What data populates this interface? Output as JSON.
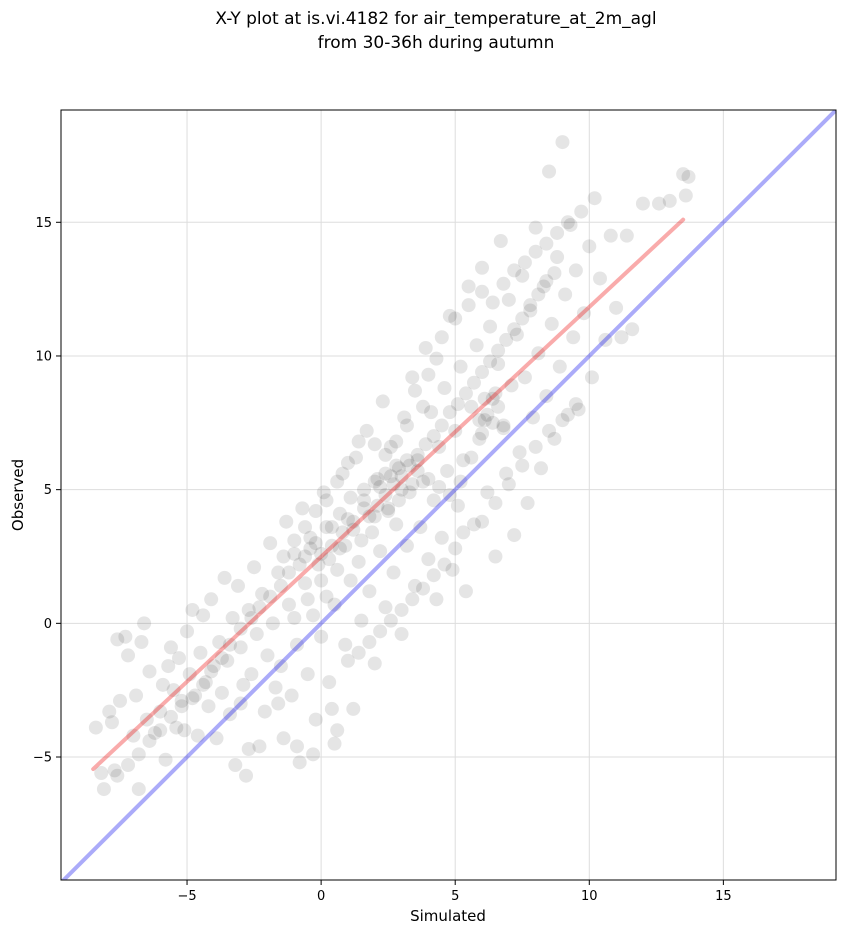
{
  "chart_data": {
    "type": "scatter",
    "title_lines": [
      "X-Y plot at is.vi.4182 for air_temperature_at_2m_agl",
      "from 30-36h during autumn"
    ],
    "xlabel": "Simulated",
    "ylabel": "Observed",
    "xlim": [
      -9.7,
      19.2
    ],
    "ylim": [
      -9.6,
      19.2
    ],
    "xticks": [
      -5,
      0,
      5,
      10,
      15
    ],
    "yticks": [
      -5,
      0,
      5,
      10,
      15
    ],
    "grid": true,
    "point_color": "#000000",
    "reference_line": {
      "color": "#0000ee",
      "x": [
        -9.7,
        19.2
      ],
      "y": [
        -9.7,
        19.2
      ]
    },
    "fit_line": {
      "color": "#ee0000",
      "x": [
        -8.5,
        13.5
      ],
      "y": [
        -5.45,
        15.1
      ]
    },
    "points": [
      [
        -8.4,
        -3.9
      ],
      [
        -8.2,
        -5.6
      ],
      [
        -8.1,
        -6.2
      ],
      [
        -7.9,
        -3.3
      ],
      [
        -7.8,
        -3.7
      ],
      [
        -7.7,
        -5.5
      ],
      [
        -7.6,
        -0.6
      ],
      [
        -7.5,
        -2.9
      ],
      [
        -7.3,
        -0.5
      ],
      [
        -7.2,
        -1.2
      ],
      [
        -7.0,
        -4.2
      ],
      [
        -6.9,
        -2.7
      ],
      [
        -6.8,
        -6.2
      ],
      [
        -6.7,
        -0.7
      ],
      [
        -6.6,
        0.0
      ],
      [
        -6.5,
        -3.6
      ],
      [
        -6.4,
        -1.8
      ],
      [
        -6.2,
        -4.1
      ],
      [
        -6.0,
        -3.3
      ],
      [
        -5.9,
        -2.3
      ],
      [
        -5.8,
        -5.1
      ],
      [
        -5.7,
        -1.6
      ],
      [
        -5.6,
        -0.9
      ],
      [
        -5.5,
        -2.5
      ],
      [
        -5.4,
        -3.9
      ],
      [
        -5.3,
        -1.3
      ],
      [
        -5.2,
        -2.9
      ],
      [
        -5.1,
        -4.0
      ],
      [
        -5.0,
        -0.3
      ],
      [
        -4.9,
        -1.9
      ],
      [
        -4.8,
        0.5
      ],
      [
        -4.7,
        -2.7
      ],
      [
        -4.6,
        -4.2
      ],
      [
        -4.5,
        -1.1
      ],
      [
        -4.4,
        0.3
      ],
      [
        -4.3,
        -2.2
      ],
      [
        -4.2,
        -3.1
      ],
      [
        -4.1,
        0.9
      ],
      [
        -4.0,
        -1.6
      ],
      [
        -3.9,
        -4.3
      ],
      [
        -3.8,
        -0.7
      ],
      [
        -3.7,
        -2.6
      ],
      [
        -3.6,
        1.7
      ],
      [
        -3.5,
        -1.4
      ],
      [
        -3.4,
        -3.4
      ],
      [
        -3.3,
        0.2
      ],
      [
        -3.2,
        -5.3
      ],
      [
        -3.1,
        1.4
      ],
      [
        -3.0,
        -0.9
      ],
      [
        -2.9,
        -2.3
      ],
      [
        -2.8,
        -5.7
      ],
      [
        -2.7,
        0.5
      ],
      [
        -2.6,
        -1.9
      ],
      [
        -2.5,
        2.1
      ],
      [
        -2.4,
        -0.4
      ],
      [
        -2.3,
        -4.6
      ],
      [
        -2.2,
        1.1
      ],
      [
        -2.1,
        -3.3
      ],
      [
        -2.0,
        -1.2
      ],
      [
        -1.9,
        3.0
      ],
      [
        -1.8,
        0.0
      ],
      [
        -1.7,
        -2.4
      ],
      [
        -1.6,
        1.9
      ],
      [
        -1.5,
        -1.6
      ],
      [
        -1.4,
        -4.3
      ],
      [
        -1.3,
        3.8
      ],
      [
        -1.2,
        0.7
      ],
      [
        -1.1,
        -2.7
      ],
      [
        -1.0,
        2.6
      ],
      [
        -0.9,
        -0.8
      ],
      [
        -0.8,
        -5.2
      ],
      [
        -0.7,
        4.3
      ],
      [
        -0.6,
        1.5
      ],
      [
        -0.5,
        -1.9
      ],
      [
        -0.4,
        3.2
      ],
      [
        -0.3,
        0.3
      ],
      [
        -0.2,
        -3.6
      ],
      [
        -0.1,
        2.2
      ],
      [
        0.0,
        -0.5
      ],
      [
        0.1,
        4.9
      ],
      [
        0.2,
        1.0
      ],
      [
        0.3,
        -2.2
      ],
      [
        0.4,
        3.6
      ],
      [
        0.5,
        0.7
      ],
      [
        0.6,
        -4.0
      ],
      [
        0.7,
        2.8
      ],
      [
        0.8,
        5.6
      ],
      [
        0.9,
        -0.8
      ],
      [
        1.0,
        3.9
      ],
      [
        1.1,
        1.6
      ],
      [
        1.2,
        -3.2
      ],
      [
        1.3,
        6.2
      ],
      [
        1.4,
        2.3
      ],
      [
        1.5,
        0.1
      ],
      [
        1.6,
        4.6
      ],
      [
        1.7,
        7.2
      ],
      [
        1.8,
        1.2
      ],
      [
        1.9,
        3.4
      ],
      [
        2.0,
        -1.5
      ],
      [
        2.1,
        5.4
      ],
      [
        2.2,
        2.7
      ],
      [
        2.3,
        8.3
      ],
      [
        2.4,
        0.6
      ],
      [
        2.5,
        4.2
      ],
      [
        2.6,
        6.6
      ],
      [
        2.7,
        1.9
      ],
      [
        2.8,
        3.7
      ],
      [
        2.9,
        5.8
      ],
      [
        3.0,
        -0.4
      ],
      [
        3.1,
        7.7
      ],
      [
        3.2,
        2.9
      ],
      [
        3.3,
        4.9
      ],
      [
        3.4,
        9.2
      ],
      [
        3.5,
        1.4
      ],
      [
        3.6,
        6.1
      ],
      [
        3.7,
        3.6
      ],
      [
        3.8,
        5.3
      ],
      [
        3.9,
        10.3
      ],
      [
        4.0,
        2.4
      ],
      [
        4.1,
        7.9
      ],
      [
        4.2,
        4.6
      ],
      [
        4.3,
        0.9
      ],
      [
        4.4,
        6.6
      ],
      [
        4.5,
        3.2
      ],
      [
        4.6,
        8.8
      ],
      [
        4.7,
        5.7
      ],
      [
        4.8,
        11.5
      ],
      [
        4.9,
        2.0
      ],
      [
        5.0,
        7.2
      ],
      [
        5.1,
        4.4
      ],
      [
        5.2,
        9.6
      ],
      [
        5.3,
        6.1
      ],
      [
        5.4,
        1.2
      ],
      [
        5.5,
        12.6
      ],
      [
        5.6,
        8.1
      ],
      [
        5.7,
        3.7
      ],
      [
        5.8,
        10.4
      ],
      [
        5.9,
        6.9
      ],
      [
        6.0,
        13.3
      ],
      [
        6.1,
        7.6
      ],
      [
        6.2,
        4.9
      ],
      [
        6.3,
        11.1
      ],
      [
        6.4,
        8.4
      ],
      [
        6.5,
        2.5
      ],
      [
        6.6,
        9.7
      ],
      [
        6.7,
        14.3
      ],
      [
        6.8,
        7.3
      ],
      [
        6.9,
        5.6
      ],
      [
        7.0,
        12.1
      ],
      [
        7.1,
        8.9
      ],
      [
        7.2,
        3.3
      ],
      [
        7.3,
        10.8
      ],
      [
        7.4,
        6.4
      ],
      [
        7.5,
        13.0
      ],
      [
        7.6,
        9.2
      ],
      [
        7.7,
        4.5
      ],
      [
        7.8,
        11.7
      ],
      [
        7.9,
        7.7
      ],
      [
        8.0,
        14.8
      ],
      [
        8.1,
        10.1
      ],
      [
        8.2,
        5.8
      ],
      [
        8.3,
        12.6
      ],
      [
        8.4,
        8.5
      ],
      [
        8.5,
        16.9
      ],
      [
        8.6,
        11.2
      ],
      [
        8.7,
        6.9
      ],
      [
        8.8,
        13.7
      ],
      [
        8.9,
        9.6
      ],
      [
        9.0,
        18.0
      ],
      [
        9.1,
        12.3
      ],
      [
        9.2,
        7.8
      ],
      [
        9.3,
        14.9
      ],
      [
        9.4,
        10.7
      ],
      [
        9.5,
        13.2
      ],
      [
        9.6,
        8.0
      ],
      [
        9.7,
        15.4
      ],
      [
        9.8,
        11.6
      ],
      [
        10.0,
        14.1
      ],
      [
        10.1,
        9.2
      ],
      [
        10.2,
        15.9
      ],
      [
        10.4,
        12.9
      ],
      [
        10.6,
        10.6
      ],
      [
        10.8,
        14.5
      ],
      [
        11.0,
        11.8
      ],
      [
        11.2,
        10.7
      ],
      [
        11.4,
        14.5
      ],
      [
        11.6,
        11.0
      ],
      [
        12.0,
        15.7
      ],
      [
        12.6,
        15.7
      ],
      [
        13.0,
        15.8
      ],
      [
        13.5,
        16.8
      ],
      [
        13.6,
        16.0
      ],
      [
        13.7,
        16.7
      ],
      [
        -0.9,
        -4.6
      ],
      [
        -1.6,
        -3.0
      ],
      [
        -0.3,
        -4.9
      ],
      [
        0.4,
        -3.2
      ],
      [
        0.5,
        -4.5
      ],
      [
        -2.7,
        -4.7
      ],
      [
        -3.0,
        -3.0
      ],
      [
        -1.0,
        0.2
      ],
      [
        -0.5,
        0.9
      ],
      [
        0.0,
        1.6
      ],
      [
        0.3,
        2.4
      ],
      [
        0.6,
        2.0
      ],
      [
        0.9,
        2.9
      ],
      [
        1.2,
        3.5
      ],
      [
        1.5,
        3.1
      ],
      [
        1.8,
        4.0
      ],
      [
        2.1,
        4.4
      ],
      [
        2.4,
        4.8
      ],
      [
        2.7,
        5.2
      ],
      [
        3.0,
        5.5
      ],
      [
        3.3,
        5.9
      ],
      [
        3.6,
        6.3
      ],
      [
        3.9,
        6.7
      ],
      [
        4.2,
        7.0
      ],
      [
        4.5,
        7.4
      ],
      [
        4.8,
        7.9
      ],
      [
        5.1,
        8.2
      ],
      [
        5.4,
        8.6
      ],
      [
        5.7,
        9.0
      ],
      [
        6.0,
        9.4
      ],
      [
        6.3,
        9.8
      ],
      [
        6.6,
        10.2
      ],
      [
        6.9,
        10.6
      ],
      [
        7.2,
        11.0
      ],
      [
        7.5,
        11.4
      ],
      [
        7.8,
        11.9
      ],
      [
        8.1,
        12.3
      ],
      [
        8.4,
        12.8
      ],
      [
        8.7,
        13.1
      ],
      [
        -0.6,
        2.5
      ],
      [
        -0.2,
        3.0
      ],
      [
        0.2,
        3.6
      ],
      [
        0.7,
        4.1
      ],
      [
        1.1,
        4.7
      ],
      [
        1.6,
        5.0
      ],
      [
        2.0,
        5.3
      ],
      [
        2.4,
        5.6
      ],
      [
        2.8,
        5.9
      ],
      [
        3.2,
        6.1
      ],
      [
        3.6,
        5.7
      ],
      [
        4.0,
        5.4
      ],
      [
        4.4,
        5.1
      ],
      [
        4.8,
        4.8
      ],
      [
        5.2,
        5.3
      ],
      [
        5.6,
        6.2
      ],
      [
        6.0,
        7.1
      ],
      [
        6.4,
        7.5
      ],
      [
        6.8,
        7.4
      ],
      [
        6.2,
        7.8
      ],
      [
        5.9,
        7.6
      ],
      [
        6.6,
        8.1
      ],
      [
        6.1,
        8.4
      ],
      [
        6.5,
        8.6
      ],
      [
        2.2,
        5.1
      ],
      [
        2.6,
        5.5
      ],
      [
        3.0,
        5.0
      ],
      [
        3.4,
        5.2
      ],
      [
        2.9,
        4.6
      ],
      [
        2.5,
        4.3
      ],
      [
        2.0,
        4.0
      ],
      [
        1.6,
        4.3
      ],
      [
        1.2,
        3.8
      ],
      [
        0.8,
        3.4
      ],
      [
        0.4,
        2.9
      ],
      [
        0.0,
        2.6
      ],
      [
        -0.4,
        2.8
      ],
      [
        -0.8,
        2.2
      ],
      [
        -1.2,
        1.9
      ],
      [
        -1.5,
        1.4
      ],
      [
        -1.9,
        1.0
      ],
      [
        -2.3,
        0.6
      ],
      [
        -2.6,
        0.2
      ],
      [
        -3.0,
        -0.2
      ],
      [
        -3.4,
        -0.8
      ],
      [
        -3.7,
        -1.3
      ],
      [
        -4.1,
        -1.8
      ],
      [
        -4.4,
        -2.3
      ],
      [
        -4.8,
        -2.8
      ],
      [
        -5.2,
        -3.1
      ],
      [
        -5.6,
        -3.5
      ],
      [
        -6.0,
        -4.0
      ],
      [
        -6.4,
        -4.4
      ],
      [
        -6.8,
        -4.9
      ],
      [
        -7.2,
        -5.3
      ],
      [
        -7.6,
        -5.7
      ],
      [
        1.0,
        6.0
      ],
      [
        1.4,
        6.8
      ],
      [
        0.6,
        5.3
      ],
      [
        0.2,
        4.6
      ],
      [
        -0.2,
        4.2
      ],
      [
        -0.6,
        3.6
      ],
      [
        -1.0,
        3.1
      ],
      [
        -1.4,
        2.5
      ],
      [
        3.5,
        8.7
      ],
      [
        4.0,
        9.3
      ],
      [
        4.3,
        9.9
      ],
      [
        3.8,
        8.1
      ],
      [
        3.2,
        7.4
      ],
      [
        2.8,
        6.8
      ],
      [
        2.4,
        6.3
      ],
      [
        2.0,
        6.7
      ],
      [
        5.0,
        2.8
      ],
      [
        5.3,
        3.4
      ],
      [
        4.6,
        2.2
      ],
      [
        4.2,
        1.8
      ],
      [
        3.8,
        1.3
      ],
      [
        3.4,
        0.9
      ],
      [
        3.0,
        0.5
      ],
      [
        2.6,
        0.1
      ],
      [
        2.2,
        -0.3
      ],
      [
        1.8,
        -0.7
      ],
      [
        1.4,
        -1.1
      ],
      [
        1.0,
        -1.4
      ],
      [
        6.0,
        3.8
      ],
      [
        6.5,
        4.5
      ],
      [
        7.0,
        5.2
      ],
      [
        7.5,
        5.9
      ],
      [
        8.0,
        6.6
      ],
      [
        8.5,
        7.2
      ],
      [
        9.0,
        7.6
      ],
      [
        9.5,
        8.2
      ],
      [
        4.5,
        10.7
      ],
      [
        5.0,
        11.4
      ],
      [
        5.5,
        11.9
      ],
      [
        6.0,
        12.4
      ],
      [
        6.4,
        12.0
      ],
      [
        6.8,
        12.7
      ],
      [
        7.2,
        13.2
      ],
      [
        7.6,
        13.5
      ],
      [
        8.0,
        13.9
      ],
      [
        8.4,
        14.2
      ],
      [
        8.8,
        14.6
      ],
      [
        9.2,
        15.0
      ]
    ]
  }
}
